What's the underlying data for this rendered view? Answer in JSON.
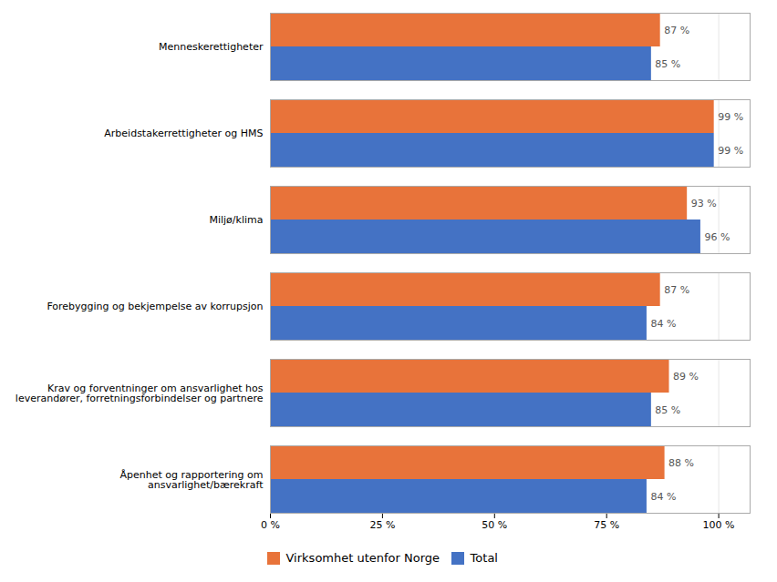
{
  "chart_data": {
    "type": "bar",
    "orientation": "horizontal",
    "categories": [
      "Menneskerettigheter",
      "Arbeidstakerrettigheter og HMS",
      "Miljø/klima",
      "Forebygging og bekjempelse av korrupsjon",
      "Krav og forventninger om ansvarlighet hos\nleverandører, forretningsforbindelser og partnere",
      "Åpenhet og rapportering om\nansvarlighet/bærekraft"
    ],
    "series": [
      {
        "name": "Virksomhet utenfor Norge",
        "color": "#E8733A",
        "values": [
          87,
          99,
          93,
          87,
          89,
          88
        ],
        "value_labels": [
          "87 %",
          "99 %",
          "93 %",
          "87 %",
          "89 %",
          "88 %"
        ]
      },
      {
        "name": "Total",
        "color": "#4472C4",
        "values": [
          85,
          99,
          96,
          84,
          85,
          84
        ],
        "value_labels": [
          "85 %",
          "99 %",
          "96 %",
          "84 %",
          "85 %",
          "84 %"
        ]
      }
    ],
    "xlim": [
      0,
      107
    ],
    "xticks": [
      {
        "value": 0,
        "label": "0 %"
      },
      {
        "value": 25,
        "label": "25 %"
      },
      {
        "value": 50,
        "label": "50 %"
      },
      {
        "value": 75,
        "label": "75 %"
      },
      {
        "value": 100,
        "label": "100 %"
      }
    ],
    "grid": true,
    "legend": "bottom",
    "data_labels": true
  }
}
